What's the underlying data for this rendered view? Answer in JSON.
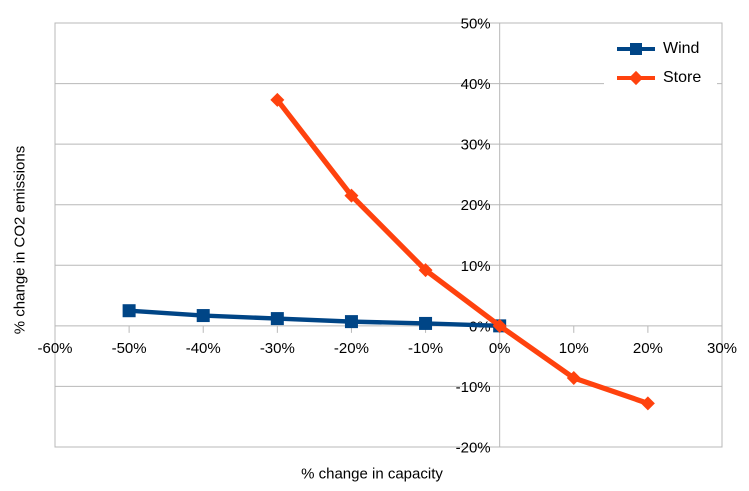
{
  "figure": {
    "background_color": "#ffffff",
    "grid_color": "#b8b8b8",
    "axis_color": "#b8b8b8",
    "text_color": "#000000"
  },
  "legend": {
    "items": [
      {
        "label": "Wind",
        "color": "#004586",
        "marker": "square"
      },
      {
        "label": "Store",
        "color": "#ff420e",
        "marker": "diamond"
      }
    ]
  },
  "chart_data": {
    "type": "line",
    "title": "",
    "xlabel": "% change in capacity",
    "ylabel": "% change in CO2 emissions",
    "xlim": [
      -60,
      30
    ],
    "ylim": [
      -20,
      50
    ],
    "x_ticks": [
      -60,
      -50,
      -40,
      -30,
      -20,
      -10,
      0,
      10,
      20,
      30
    ],
    "x_tick_labels": [
      "-60%",
      "-50%",
      "-40%",
      "-30%",
      "-20%",
      "-10%",
      "0%",
      "10%",
      "20%",
      "30%"
    ],
    "y_ticks": [
      50,
      40,
      30,
      20,
      10,
      0,
      -10,
      -20
    ],
    "y_tick_labels": [
      "50%",
      "40%",
      "30%",
      "20%",
      "10%",
      "0%",
      "-10%",
      "-20%"
    ],
    "grid": "horizontal",
    "axis_cross_x": 0,
    "legend_position": "top-right-inside",
    "series": [
      {
        "name": "Wind",
        "color": "#004586",
        "marker": "square",
        "x": [
          -50,
          -40,
          -30,
          -20,
          -10,
          0
        ],
        "y": [
          2.5,
          1.7,
          1.2,
          0.7,
          0.4,
          0
        ]
      },
      {
        "name": "Store",
        "color": "#ff420e",
        "marker": "diamond",
        "x": [
          -30,
          -20,
          -10,
          0,
          10,
          20
        ],
        "y": [
          37.3,
          21.5,
          9.2,
          0,
          -8.6,
          -12.8
        ]
      }
    ]
  }
}
